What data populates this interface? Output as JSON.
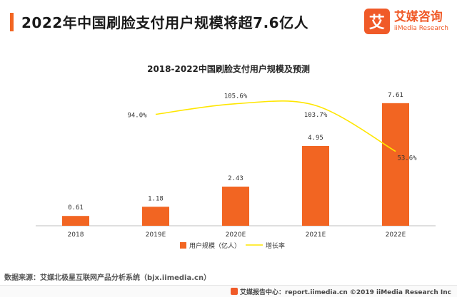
{
  "header": {
    "title": "2022年中国刷脸支付用户规模将超7.6亿人",
    "brand_name": "艾媒咨询",
    "brand_en": "iiMedia Research",
    "brand_logo_char": "艾",
    "accent_color": "#f26522"
  },
  "source": "数据来源：艾媒北极星互联网产品分析系统（bjx.iimedia.cn）",
  "footer": {
    "text": "艾媒报告中心：report.iimedia.cn  ©2019  iiMedia Research  Inc"
  },
  "chart_data": {
    "type": "bar",
    "title": "2018-2022中国刷脸支付用户规模及预测",
    "categories": [
      "2018",
      "2019E",
      "2020E",
      "2021E",
      "2022E"
    ],
    "series": [
      {
        "name": "用户规模（亿人）",
        "type": "bar",
        "values": [
          0.61,
          1.18,
          2.43,
          4.95,
          7.61
        ],
        "labels": [
          "0.61",
          "1.18",
          "2.43",
          "4.95",
          "7.61"
        ],
        "color": "#f26522"
      },
      {
        "name": "增长率",
        "type": "line",
        "values": [
          null,
          94.0,
          105.6,
          103.7,
          53.6
        ],
        "labels": [
          "",
          "94.0%",
          "105.6%",
          "103.7%",
          "53.6%"
        ],
        "color": "#ffe600"
      }
    ],
    "ylim": [
      0,
      8
    ],
    "y2lim": [
      0,
      160
    ],
    "grid": false,
    "legend": "bottom"
  }
}
